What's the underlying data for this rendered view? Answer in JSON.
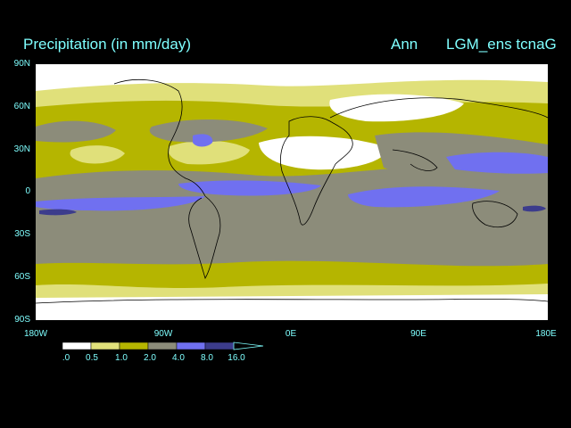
{
  "title": {
    "left": "Precipitation (in mm/day)",
    "middle": "Ann",
    "right": "LGM_ens tcnaG"
  },
  "axes": {
    "lat_labels": [
      "90N",
      "60N",
      "30N",
      "0",
      "30S",
      "60S",
      "90S"
    ],
    "lon_labels": [
      "180W",
      "90W",
      "0E",
      "90E",
      "180E"
    ]
  },
  "legend": {
    "labels": [
      ".0",
      "0.5",
      "1.0",
      "2.0",
      "4.0",
      "8.0",
      "16.0"
    ],
    "colors": [
      "#ffffff",
      "#e0e07a",
      "#b5b500",
      "#8c8c7a",
      "#7070f0",
      "#3c3c8c"
    ]
  },
  "colors": {
    "background": "#000000",
    "text": "#7fffff",
    "coastline": "#000000"
  }
}
